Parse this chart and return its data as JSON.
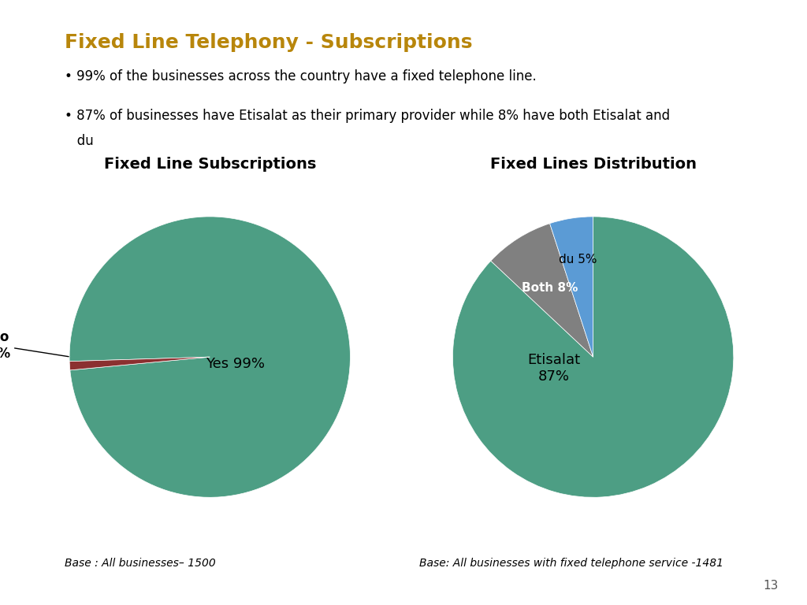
{
  "title": "Fixed Line Telephony - Subscriptions",
  "title_color": "#B8860B",
  "bg_color": "#FFFFFF",
  "bullet1": "99% of the businesses across the country have a fixed telephone line.",
  "bullet2": "87% of businesses have Etisalat as their primary provider while 8% have both Etisalat and",
  "bullet2b": "   du",
  "sidebar_color": "#B8860B",
  "chart1_title": "Fixed Line Subscriptions",
  "chart1_values": [
    99,
    1
  ],
  "chart1_colors": [
    "#4D9E84",
    "#8B3030"
  ],
  "chart2_title": "Fixed Lines Distribution",
  "chart2_values": [
    87,
    8,
    5
  ],
  "chart2_colors": [
    "#4D9E84",
    "#808080",
    "#5B9BD5"
  ],
  "footnote_left": "Base : All businesses– 1500",
  "footnote_right": "Base: All businesses with fixed telephone service -1481",
  "page_number": "13",
  "separator_color": "#B8860B"
}
